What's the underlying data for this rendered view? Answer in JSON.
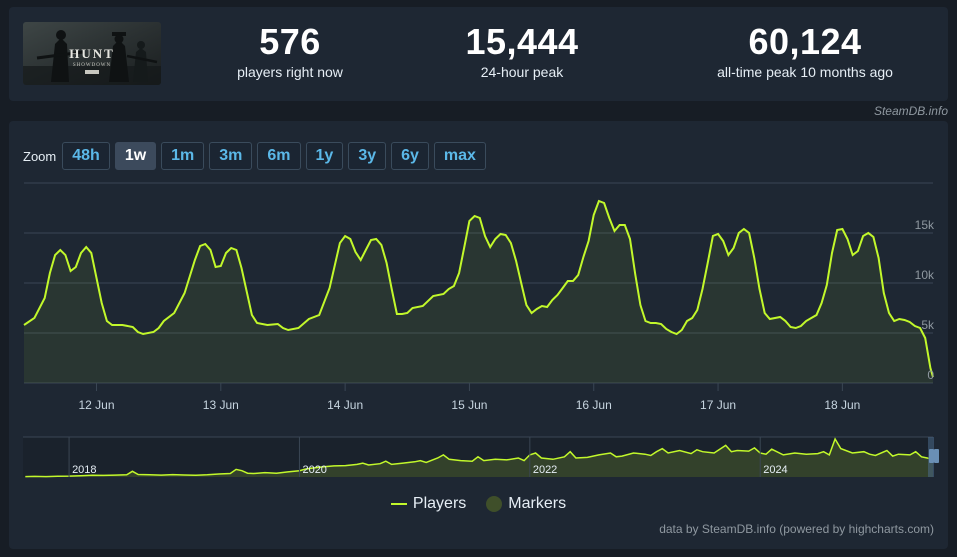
{
  "stats": [
    {
      "value": "576",
      "label": "players right now"
    },
    {
      "value": "15,444",
      "label": "24-hour peak"
    },
    {
      "value": "60,124",
      "label": "all-time peak 10 months ago"
    }
  ],
  "credit_top": "SteamDB.info",
  "zoom": {
    "label": "Zoom",
    "options": [
      "48h",
      "1w",
      "1m",
      "3m",
      "6m",
      "1y",
      "3y",
      "6y",
      "max"
    ],
    "active": "1w"
  },
  "legend": {
    "players": "Players",
    "markers": "Markers"
  },
  "credit_bottom": "data by SteamDB.info (powered by highcharts.com)",
  "colors": {
    "line": "#c2f82b",
    "grid": "#3a4654",
    "accent": "#5bb8e8"
  },
  "chart_data": {
    "type": "line",
    "series": [
      {
        "name": "Players",
        "x_unit": "hours since 11 Jun 10:00",
        "points": [
          [
            0,
            5800
          ],
          [
            2,
            6500
          ],
          [
            4,
            8500
          ],
          [
            5,
            11000
          ],
          [
            6,
            12800
          ],
          [
            7,
            13300
          ],
          [
            8,
            12800
          ],
          [
            9,
            11200
          ],
          [
            10,
            11600
          ],
          [
            11,
            13000
          ],
          [
            12,
            13600
          ],
          [
            13,
            13000
          ],
          [
            14,
            10500
          ],
          [
            15,
            8000
          ],
          [
            16,
            6200
          ],
          [
            17,
            5800
          ],
          [
            19,
            5800
          ],
          [
            21,
            5600
          ],
          [
            22,
            5100
          ],
          [
            23,
            4900
          ],
          [
            25,
            5100
          ],
          [
            26,
            5500
          ],
          [
            27,
            6200
          ],
          [
            29,
            7000
          ],
          [
            31,
            9000
          ],
          [
            33,
            12300
          ],
          [
            34,
            13700
          ],
          [
            35,
            13900
          ],
          [
            36,
            13300
          ],
          [
            37,
            11600
          ],
          [
            38,
            11700
          ],
          [
            39,
            13000
          ],
          [
            40,
            13500
          ],
          [
            41,
            13300
          ],
          [
            42,
            11500
          ],
          [
            44,
            6800
          ],
          [
            45,
            6000
          ],
          [
            47,
            5800
          ],
          [
            49,
            5900
          ],
          [
            50,
            5500
          ],
          [
            51,
            5300
          ],
          [
            53,
            5500
          ],
          [
            55,
            6400
          ],
          [
            57,
            6800
          ],
          [
            59,
            9500
          ],
          [
            61,
            14000
          ],
          [
            62,
            14700
          ],
          [
            63,
            14400
          ],
          [
            64,
            13100
          ],
          [
            65,
            12300
          ],
          [
            66,
            13300
          ],
          [
            67,
            14300
          ],
          [
            68,
            14400
          ],
          [
            69,
            13800
          ],
          [
            70,
            12000
          ],
          [
            71,
            9400
          ],
          [
            72,
            6900
          ],
          [
            73,
            6900
          ],
          [
            74,
            7000
          ],
          [
            75,
            7500
          ],
          [
            77,
            7700
          ],
          [
            79,
            8700
          ],
          [
            81,
            8900
          ],
          [
            82,
            9400
          ],
          [
            83,
            9700
          ],
          [
            84,
            11000
          ],
          [
            85,
            13600
          ],
          [
            86,
            16200
          ],
          [
            87,
            16700
          ],
          [
            88,
            16500
          ],
          [
            89,
            14700
          ],
          [
            90,
            13600
          ],
          [
            91,
            14400
          ],
          [
            92,
            14900
          ],
          [
            93,
            14800
          ],
          [
            94,
            14000
          ],
          [
            95,
            12200
          ],
          [
            96,
            10000
          ],
          [
            97,
            7800
          ],
          [
            98,
            7000
          ],
          [
            99,
            7400
          ],
          [
            100,
            7700
          ],
          [
            101,
            7600
          ],
          [
            102,
            8300
          ],
          [
            103,
            8800
          ],
          [
            104,
            9500
          ],
          [
            105,
            10200
          ],
          [
            106,
            10200
          ],
          [
            107,
            10800
          ],
          [
            108,
            12600
          ],
          [
            109,
            14200
          ],
          [
            110,
            16800
          ],
          [
            111,
            18200
          ],
          [
            112,
            18000
          ],
          [
            113,
            16500
          ],
          [
            114,
            15200
          ],
          [
            115,
            15800
          ],
          [
            116,
            15800
          ],
          [
            117,
            14400
          ],
          [
            118,
            10900
          ],
          [
            119,
            7800
          ],
          [
            120,
            6200
          ],
          [
            121,
            6000
          ],
          [
            122,
            6000
          ],
          [
            123,
            5900
          ],
          [
            124,
            5400
          ],
          [
            125,
            5100
          ],
          [
            126,
            4900
          ],
          [
            127,
            5300
          ],
          [
            128,
            6200
          ],
          [
            129,
            6500
          ],
          [
            130,
            7300
          ],
          [
            131,
            9400
          ],
          [
            132,
            12000
          ],
          [
            133,
            14700
          ],
          [
            134,
            14900
          ],
          [
            135,
            14200
          ],
          [
            136,
            12800
          ],
          [
            137,
            13500
          ],
          [
            138,
            15000
          ],
          [
            139,
            15400
          ],
          [
            140,
            15000
          ],
          [
            141,
            12500
          ],
          [
            142,
            9400
          ],
          [
            143,
            7000
          ],
          [
            144,
            6400
          ],
          [
            145,
            6500
          ],
          [
            146,
            6600
          ],
          [
            147,
            6200
          ],
          [
            148,
            5600
          ],
          [
            149,
            5500
          ],
          [
            150,
            5700
          ],
          [
            151,
            6200
          ],
          [
            152,
            6500
          ],
          [
            153,
            6800
          ],
          [
            154,
            8000
          ],
          [
            155,
            9800
          ],
          [
            156,
            13000
          ],
          [
            157,
            15300
          ],
          [
            158,
            15400
          ],
          [
            159,
            14400
          ],
          [
            160,
            12800
          ],
          [
            161,
            13200
          ],
          [
            162,
            14700
          ],
          [
            163,
            15000
          ],
          [
            164,
            14600
          ],
          [
            165,
            12500
          ],
          [
            166,
            9000
          ],
          [
            167,
            7000
          ],
          [
            168,
            6200
          ],
          [
            169,
            6400
          ],
          [
            170,
            6300
          ],
          [
            171,
            6100
          ],
          [
            172,
            5700
          ],
          [
            173,
            5500
          ],
          [
            174,
            4500
          ],
          [
            175,
            1500
          ],
          [
            175.5,
            600
          ]
        ]
      }
    ],
    "x_tick_labels": [
      "12 Jun",
      "13 Jun",
      "14 Jun",
      "15 Jun",
      "16 Jun",
      "17 Jun",
      "18 Jun"
    ],
    "x_tick_positions": [
      14,
      38,
      62,
      86,
      110,
      134,
      158
    ],
    "x_range": [
      0,
      175.5
    ],
    "y_tick_labels": [
      "0",
      "5k",
      "10k",
      "15k"
    ],
    "y_tick_values": [
      0,
      5000,
      10000,
      15000
    ],
    "ylim": [
      0,
      20000
    ],
    "grid": true,
    "navigator": {
      "labels": [
        "2018",
        "2020",
        "2022",
        "2024"
      ],
      "label_positions": [
        2018,
        2020,
        2022,
        2024
      ],
      "x_range": [
        2017.6,
        2025.5
      ],
      "ylim": [
        0,
        60124
      ],
      "points": [
        [
          2017.62,
          700
        ],
        [
          2017.7,
          900
        ],
        [
          2017.8,
          600
        ],
        [
          2017.9,
          1200
        ],
        [
          2018,
          1500
        ],
        [
          2018.1,
          2000
        ],
        [
          2018.2,
          2800
        ],
        [
          2018.3,
          2500
        ],
        [
          2018.4,
          3000
        ],
        [
          2018.5,
          3500
        ],
        [
          2018.55,
          9000
        ],
        [
          2018.6,
          4000
        ],
        [
          2018.7,
          3500
        ],
        [
          2018.8,
          3000
        ],
        [
          2018.9,
          3800
        ],
        [
          2019,
          3200
        ],
        [
          2019.1,
          2800
        ],
        [
          2019.2,
          3500
        ],
        [
          2019.3,
          4800
        ],
        [
          2019.4,
          5500
        ],
        [
          2019.45,
          12000
        ],
        [
          2019.5,
          10000
        ],
        [
          2019.55,
          6000
        ],
        [
          2019.6,
          5500
        ],
        [
          2019.7,
          7000
        ],
        [
          2019.8,
          6000
        ],
        [
          2019.9,
          8000
        ],
        [
          2020,
          10000
        ],
        [
          2020.05,
          12500
        ],
        [
          2020.1,
          14000
        ],
        [
          2020.2,
          16000
        ],
        [
          2020.3,
          17500
        ],
        [
          2020.4,
          18000
        ],
        [
          2020.5,
          20000
        ],
        [
          2020.55,
          22000
        ],
        [
          2020.6,
          19000
        ],
        [
          2020.7,
          21000
        ],
        [
          2020.75,
          25000
        ],
        [
          2020.8,
          20000
        ],
        [
          2020.9,
          22000
        ],
        [
          2021,
          24000
        ],
        [
          2021.05,
          26000
        ],
        [
          2021.1,
          23000
        ],
        [
          2021.2,
          30000
        ],
        [
          2021.25,
          35000
        ],
        [
          2021.3,
          28000
        ],
        [
          2021.4,
          26000
        ],
        [
          2021.5,
          25000
        ],
        [
          2021.55,
          32000
        ],
        [
          2021.6,
          26000
        ],
        [
          2021.7,
          28000
        ],
        [
          2021.8,
          27000
        ],
        [
          2021.9,
          30000
        ],
        [
          2021.95,
          26000
        ],
        [
          2022,
          35000
        ],
        [
          2022.05,
          38000
        ],
        [
          2022.1,
          30000
        ],
        [
          2022.2,
          28000
        ],
        [
          2022.3,
          32000
        ],
        [
          2022.35,
          40000
        ],
        [
          2022.4,
          30000
        ],
        [
          2022.5,
          31000
        ],
        [
          2022.6,
          35000
        ],
        [
          2022.7,
          38000
        ],
        [
          2022.75,
          32000
        ],
        [
          2022.8,
          33000
        ],
        [
          2022.9,
          38000
        ],
        [
          2023,
          36000
        ],
        [
          2023.05,
          34000
        ],
        [
          2023.1,
          40000
        ],
        [
          2023.15,
          45000
        ],
        [
          2023.2,
          38000
        ],
        [
          2023.3,
          42000
        ],
        [
          2023.4,
          37000
        ],
        [
          2023.45,
          43000
        ],
        [
          2023.5,
          40000
        ],
        [
          2023.6,
          38000
        ],
        [
          2023.7,
          50000
        ],
        [
          2023.75,
          40000
        ],
        [
          2023.8,
          42000
        ],
        [
          2023.9,
          41000
        ],
        [
          2023.95,
          46000
        ],
        [
          2024,
          38000
        ],
        [
          2024.05,
          36000
        ],
        [
          2024.1,
          44000
        ],
        [
          2024.2,
          35000
        ],
        [
          2024.3,
          38000
        ],
        [
          2024.4,
          36000
        ],
        [
          2024.5,
          37000
        ],
        [
          2024.55,
          40000
        ],
        [
          2024.6,
          35000
        ],
        [
          2024.65,
          60124
        ],
        [
          2024.7,
          45000
        ],
        [
          2024.8,
          38000
        ],
        [
          2024.9,
          40000
        ],
        [
          2024.95,
          36000
        ],
        [
          2025,
          34000
        ],
        [
          2025.1,
          42000
        ],
        [
          2025.15,
          33000
        ],
        [
          2025.2,
          36000
        ],
        [
          2025.3,
          35000
        ],
        [
          2025.35,
          40000
        ],
        [
          2025.4,
          32000
        ],
        [
          2025.45,
          30000
        ],
        [
          2025.5,
          28000
        ]
      ]
    }
  }
}
